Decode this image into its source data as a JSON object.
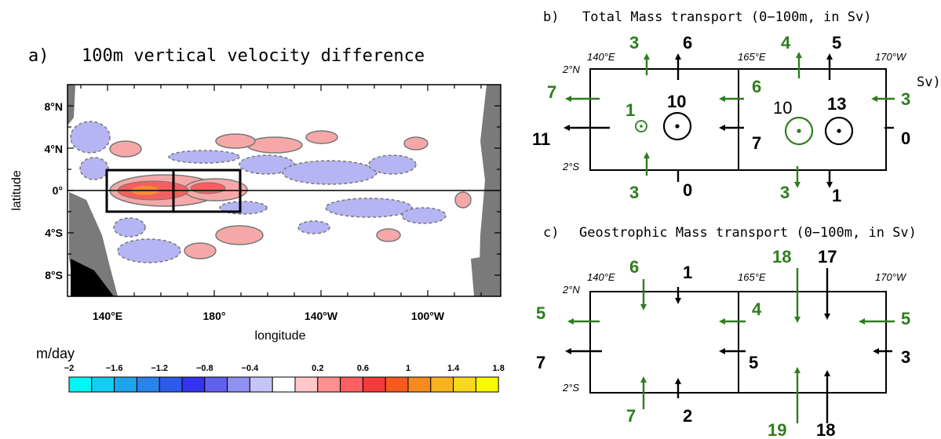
{
  "panel_a": {
    "label": "a)",
    "title": "100m vertical velocity difference",
    "xlabel": "longitude",
    "ylabel": "latitude",
    "xticks": [
      "140°E",
      "180°",
      "140°W",
      "100°W"
    ],
    "yticks": [
      "8°N",
      "4°N",
      "0°",
      "4°S",
      "8°S"
    ],
    "unit": "m/day",
    "colorbar_labels": [
      "−2",
      "−1.6",
      "−1.2",
      "−0.8",
      "−0.4",
      "0.2",
      "0.6",
      "1",
      "1.4",
      "1.8"
    ],
    "colorbar_colors": [
      "#00f7f7",
      "#12cdf2",
      "#1ea4ee",
      "#2b82ea",
      "#2c5bea",
      "#3333f0",
      "#6060ee",
      "#9090f0",
      "#c4c4f6",
      "#ffffff",
      "#ffc8c8",
      "#ff9090",
      "#ff6060",
      "#f43a3a",
      "#f55a1e",
      "#f78a1e",
      "#f8b41e",
      "#f8d81e",
      "#f8f800"
    ]
  },
  "panel_b": {
    "label": "b)",
    "title": "Total Mass transport (0−100m, in Sv)",
    "side_label": "Sv)",
    "corners": {
      "lat_top": "2°N",
      "lat_bottom": "2°S",
      "lon_left": "140°E",
      "lon_mid": "165°E",
      "lon_right": "170°W"
    },
    "green": {
      "top_left": "3",
      "top_right": "4",
      "bottom_left": "3",
      "bottom_right": "3",
      "west_left": "7",
      "west_mid": "6",
      "east_right": "3",
      "upwell_left": "1",
      "upwell_right": "10"
    },
    "black": {
      "top_left": "6",
      "top_right": "5",
      "bottom_left": "0",
      "bottom_right": "1",
      "west_left": "11",
      "west_mid": "7",
      "east_right": "0",
      "upwell_left": "10",
      "upwell_right": "13"
    }
  },
  "panel_c": {
    "label": "c)",
    "title": "Geostrophic Mass transport (0−100m, in Sv)",
    "corners": {
      "lat_top": "2°N",
      "lat_bottom": "2°S",
      "lon_left": "140°E",
      "lon_mid": "165°E",
      "lon_right": "170°W"
    },
    "green": {
      "top_left": "6",
      "top_right": "18",
      "bottom_left": "7",
      "bottom_right": "19",
      "west_left": "5",
      "west_mid": "4",
      "east_right": "5"
    },
    "black": {
      "top_left": "1",
      "top_right": "17",
      "bottom_left": "2",
      "bottom_right": "18",
      "west_left": "7",
      "west_mid": "5",
      "east_right": "3"
    }
  },
  "colors": {
    "green": "#2e7d1e",
    "black": "#000000",
    "land": "#7a7a7a",
    "positive": "#f08080",
    "negative": "#8c8cf0"
  }
}
